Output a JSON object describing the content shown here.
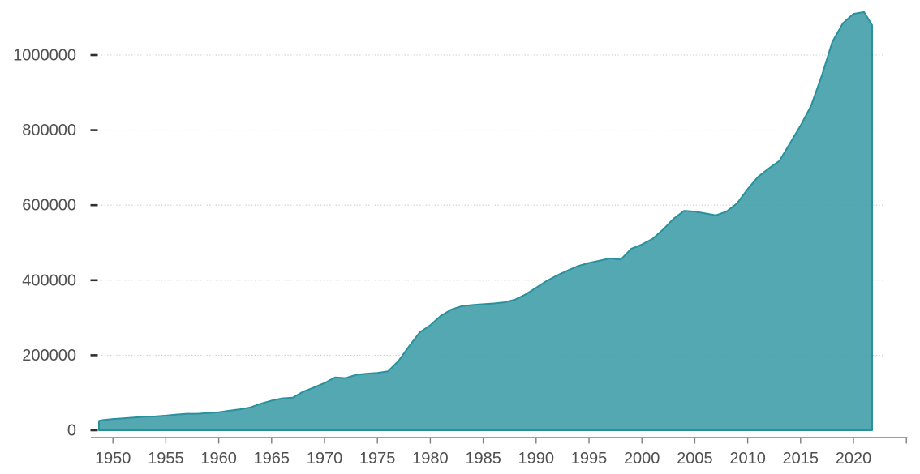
{
  "chart_data": {
    "type": "area",
    "title": "",
    "xlabel": "",
    "ylabel": "",
    "legend": "none",
    "grid": "horizontal-dotted",
    "x": [
      1948,
      1949,
      1950,
      1951,
      1952,
      1953,
      1954,
      1955,
      1956,
      1957,
      1958,
      1959,
      1960,
      1961,
      1962,
      1963,
      1964,
      1965,
      1966,
      1967,
      1968,
      1969,
      1970,
      1971,
      1972,
      1973,
      1974,
      1975,
      1976,
      1977,
      1978,
      1979,
      1980,
      1981,
      1982,
      1983,
      1984,
      1985,
      1986,
      1987,
      1988,
      1989,
      1990,
      1991,
      1992,
      1993,
      1994,
      1995,
      1996,
      1997,
      1998,
      1999,
      2000,
      2001,
      2002,
      2003,
      2004,
      2005,
      2006,
      2007,
      2008,
      2009,
      2010,
      2011,
      2012,
      2013,
      2014,
      2015,
      2016,
      2017,
      2018,
      2019,
      2020,
      2021,
      2022
    ],
    "series": [
      {
        "name": "value",
        "values": [
          25000,
          27000,
          30000,
          32000,
          34000,
          36000,
          37000,
          39000,
          42000,
          44000,
          44000,
          46000,
          48000,
          52000,
          56000,
          61000,
          71000,
          79000,
          85000,
          87000,
          103000,
          114000,
          126000,
          141000,
          139000,
          148000,
          151000,
          153000,
          157000,
          185000,
          224000,
          261000,
          280000,
          305000,
          322000,
          331000,
          334000,
          336000,
          338000,
          341000,
          348000,
          362000,
          380000,
          398000,
          413000,
          426000,
          438000,
          446000,
          452000,
          458000,
          455000,
          484000,
          495000,
          510000,
          535000,
          564000,
          585000,
          583000,
          578000,
          573000,
          583000,
          605000,
          643000,
          676000,
          698000,
          718000,
          765000,
          812000,
          865000,
          945000,
          1035000,
          1085000,
          1110000,
          1115000,
          1080000
        ]
      }
    ],
    "xlim": [
      1948.7,
      2025.7
    ],
    "ylim": [
      0,
      1150000
    ],
    "yticks": [
      0,
      200000,
      400000,
      600000,
      800000,
      1000000
    ],
    "ytick_labels": [
      "0",
      "200000",
      "400000",
      "600000",
      "800000",
      "1000000"
    ],
    "xticks": [
      1950,
      1955,
      1960,
      1965,
      1970,
      1975,
      1980,
      1985,
      1990,
      1995,
      2000,
      2005,
      2010,
      2015,
      2020,
      2025
    ],
    "xtick_labels": [
      "1950",
      "1955",
      "1960",
      "1965",
      "1970",
      "1975",
      "1980",
      "1985",
      "1990",
      "1995",
      "2000",
      "2005",
      "2010",
      "2015",
      "2020",
      ""
    ],
    "colors": {
      "area_fill": "#46A1AB",
      "area_fill_opacity": 0.93,
      "area_stroke": "#28919E",
      "gridline": "#C9C9C9",
      "axis_line": "#7E7E7E",
      "y_tick_dash": "#2F2F2F",
      "tick_label": "#505050"
    }
  }
}
